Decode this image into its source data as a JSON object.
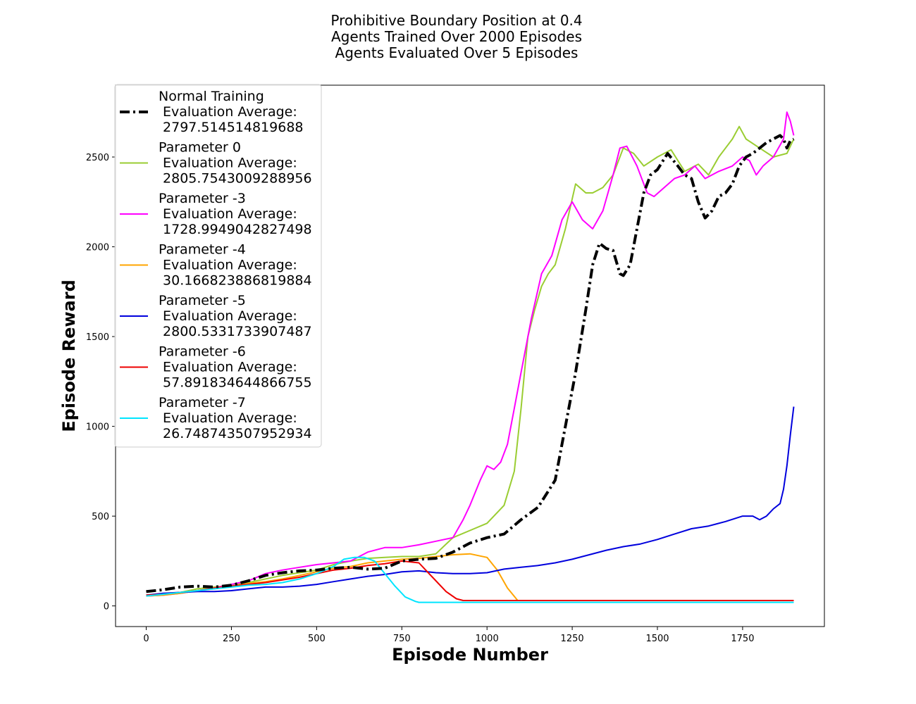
{
  "chart_data": {
    "type": "line",
    "title": [
      "Prohibitive Boundary Position at 0.4",
      "Agents Trained Over 2000 Episodes",
      "Agents Evaluated Over 5 Episodes"
    ],
    "xlabel": "Episode Number",
    "ylabel": "Episode Reward",
    "xlim": [
      -90,
      1990
    ],
    "ylim": [
      -115,
      2900
    ],
    "xticks": [
      0,
      250,
      500,
      750,
      1000,
      1250,
      1500,
      1750
    ],
    "yticks": [
      0,
      500,
      1000,
      1500,
      2000,
      2500
    ],
    "grid": false,
    "legend_position": "upper-left",
    "series": [
      {
        "name": [
          "Normal Training",
          " Evaluation Average:",
          " 2797.514514819688"
        ],
        "color": "#000000",
        "style": "dashdot",
        "width": 4,
        "x": [
          0,
          50,
          100,
          150,
          200,
          250,
          300,
          350,
          400,
          450,
          500,
          550,
          600,
          650,
          700,
          750,
          800,
          850,
          900,
          950,
          1000,
          1050,
          1100,
          1150,
          1200,
          1230,
          1260,
          1290,
          1310,
          1330,
          1350,
          1370,
          1390,
          1400,
          1420,
          1440,
          1460,
          1480,
          1500,
          1530,
          1560,
          1580,
          1600,
          1620,
          1640,
          1660,
          1680,
          1700,
          1720,
          1740,
          1760,
          1780,
          1800,
          1820,
          1840,
          1860,
          1870,
          1880,
          1890,
          1900
        ],
        "y": [
          80,
          90,
          105,
          110,
          105,
          115,
          140,
          170,
          185,
          195,
          200,
          210,
          215,
          205,
          210,
          250,
          260,
          265,
          300,
          350,
          380,
          400,
          480,
          550,
          700,
          1000,
          1300,
          1650,
          1900,
          2020,
          1990,
          1980,
          1850,
          1840,
          1900,
          2100,
          2300,
          2400,
          2430,
          2520,
          2450,
          2400,
          2380,
          2250,
          2160,
          2200,
          2280,
          2300,
          2350,
          2450,
          2500,
          2520,
          2550,
          2580,
          2600,
          2620,
          2600,
          2550,
          2590,
          2600
        ]
      },
      {
        "name": [
          "Parameter 0",
          " Evaluation Average:",
          " 2805.7543009288956"
        ],
        "color": "#9acd32",
        "style": "solid",
        "width": 2,
        "x": [
          0,
          50,
          100,
          150,
          200,
          250,
          300,
          350,
          400,
          450,
          500,
          550,
          600,
          650,
          700,
          750,
          800,
          850,
          900,
          950,
          1000,
          1050,
          1080,
          1100,
          1120,
          1140,
          1160,
          1180,
          1200,
          1230,
          1260,
          1290,
          1310,
          1340,
          1370,
          1400,
          1430,
          1460,
          1500,
          1540,
          1580,
          1620,
          1650,
          1680,
          1700,
          1720,
          1740,
          1760,
          1800,
          1840,
          1880,
          1900
        ],
        "y": [
          60,
          65,
          75,
          95,
          105,
          115,
          130,
          150,
          170,
          185,
          200,
          230,
          250,
          265,
          270,
          275,
          275,
          290,
          380,
          420,
          460,
          560,
          750,
          1100,
          1500,
          1650,
          1780,
          1850,
          1900,
          2100,
          2350,
          2300,
          2300,
          2330,
          2400,
          2550,
          2520,
          2450,
          2500,
          2540,
          2420,
          2460,
          2400,
          2500,
          2550,
          2600,
          2670,
          2600,
          2550,
          2500,
          2520,
          2600
        ]
      },
      {
        "name": [
          "Parameter -3",
          " Evaluation Average:",
          " 1728.9949042827498"
        ],
        "color": "#ff00ff",
        "style": "solid",
        "width": 2,
        "x": [
          0,
          50,
          100,
          150,
          200,
          250,
          300,
          350,
          400,
          450,
          500,
          550,
          600,
          650,
          700,
          750,
          800,
          850,
          900,
          930,
          950,
          980,
          1000,
          1020,
          1040,
          1060,
          1080,
          1100,
          1130,
          1160,
          1190,
          1220,
          1250,
          1280,
          1310,
          1340,
          1370,
          1390,
          1410,
          1440,
          1470,
          1490,
          1520,
          1550,
          1580,
          1610,
          1640,
          1680,
          1720,
          1750,
          1770,
          1790,
          1810,
          1840,
          1870,
          1880,
          1890,
          1900
        ],
        "y": [
          55,
          60,
          70,
          85,
          100,
          120,
          140,
          180,
          200,
          215,
          230,
          240,
          250,
          300,
          325,
          325,
          340,
          360,
          380,
          480,
          560,
          700,
          780,
          760,
          800,
          900,
          1100,
          1300,
          1600,
          1850,
          1950,
          2150,
          2250,
          2150,
          2100,
          2200,
          2400,
          2550,
          2560,
          2450,
          2300,
          2280,
          2330,
          2380,
          2400,
          2450,
          2380,
          2420,
          2450,
          2500,
          2480,
          2400,
          2450,
          2500,
          2600,
          2750,
          2700,
          2620
        ]
      },
      {
        "name": [
          "Parameter -4",
          " Evaluation Average:",
          " 30.166823886819884"
        ],
        "color": "#ffa500",
        "style": "solid",
        "width": 2,
        "x": [
          0,
          50,
          100,
          150,
          200,
          250,
          300,
          350,
          400,
          450,
          500,
          550,
          600,
          650,
          700,
          750,
          800,
          850,
          900,
          950,
          1000,
          1030,
          1060,
          1090,
          1100,
          1200,
          1300,
          1400,
          1500,
          1600,
          1700,
          1800,
          1900
        ],
        "y": [
          55,
          60,
          70,
          85,
          95,
          110,
          125,
          135,
          150,
          170,
          190,
          210,
          220,
          240,
          250,
          260,
          265,
          275,
          285,
          290,
          270,
          200,
          100,
          30,
          30,
          30,
          30,
          30,
          30,
          30,
          30,
          30,
          30
        ]
      },
      {
        "name": [
          "Parameter -5",
          " Evaluation Average:",
          " 2800.5331733907487"
        ],
        "color": "#0000dd",
        "style": "solid",
        "width": 2,
        "x": [
          0,
          50,
          100,
          150,
          200,
          250,
          300,
          350,
          400,
          450,
          500,
          550,
          600,
          650,
          700,
          750,
          800,
          850,
          900,
          950,
          1000,
          1050,
          1100,
          1150,
          1200,
          1250,
          1300,
          1350,
          1400,
          1450,
          1500,
          1550,
          1600,
          1650,
          1700,
          1750,
          1780,
          1800,
          1820,
          1840,
          1860,
          1870,
          1880,
          1890,
          1900
        ],
        "y": [
          60,
          70,
          75,
          80,
          80,
          85,
          95,
          105,
          105,
          110,
          120,
          135,
          150,
          165,
          175,
          190,
          195,
          185,
          180,
          180,
          185,
          205,
          215,
          225,
          240,
          260,
          285,
          310,
          330,
          345,
          370,
          400,
          430,
          445,
          470,
          500,
          500,
          480,
          500,
          540,
          570,
          650,
          780,
          950,
          1110
        ]
      },
      {
        "name": [
          "Parameter -6",
          " Evaluation Average:",
          " 57.891834644866755"
        ],
        "color": "#ee0000",
        "style": "solid",
        "width": 2,
        "x": [
          0,
          50,
          100,
          150,
          200,
          250,
          300,
          350,
          400,
          450,
          500,
          550,
          600,
          650,
          700,
          750,
          800,
          820,
          850,
          880,
          910,
          930,
          1000,
          1100,
          1200,
          1300,
          1400,
          1500,
          1600,
          1700,
          1800,
          1900
        ],
        "y": [
          60,
          65,
          75,
          85,
          100,
          110,
          120,
          130,
          145,
          160,
          180,
          200,
          210,
          225,
          235,
          250,
          240,
          200,
          140,
          80,
          40,
          30,
          30,
          30,
          30,
          30,
          30,
          30,
          30,
          30,
          30,
          30
        ]
      },
      {
        "name": [
          "Parameter -7",
          " Evaluation Average:",
          " 26.748743507952934"
        ],
        "color": "#00e5ff",
        "style": "solid",
        "width": 2,
        "x": [
          0,
          50,
          100,
          150,
          200,
          250,
          300,
          350,
          400,
          450,
          500,
          550,
          580,
          610,
          640,
          670,
          700,
          730,
          760,
          790,
          800,
          850,
          900,
          1000,
          1100,
          1200,
          1300,
          1400,
          1500,
          1600,
          1700,
          1800,
          1900
        ],
        "y": [
          55,
          65,
          75,
          85,
          95,
          105,
          115,
          120,
          130,
          150,
          180,
          220,
          260,
          270,
          270,
          250,
          180,
          110,
          50,
          25,
          20,
          20,
          20,
          20,
          20,
          20,
          20,
          20,
          20,
          20,
          20,
          20,
          20
        ]
      }
    ]
  }
}
